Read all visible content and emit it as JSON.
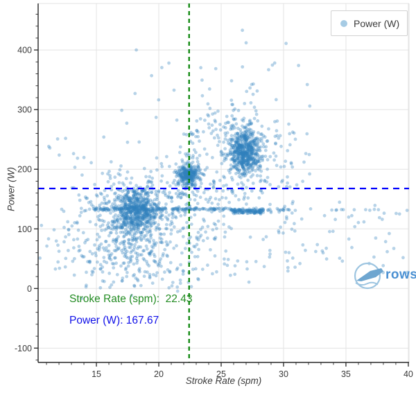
{
  "chart_data": {
    "type": "scatter",
    "title": "",
    "xlabel": "Stroke Rate (spm)",
    "ylabel": "Power (W)",
    "xlim": [
      10.33,
      40.06
    ],
    "ylim": [
      -124,
      478
    ],
    "x_major_ticks": [
      15,
      20,
      25,
      30,
      35,
      40
    ],
    "y_major_ticks": [
      -100,
      0,
      100,
      200,
      300,
      400
    ],
    "x_minor_step": 1,
    "y_minor_step": 20,
    "grid": true,
    "legend": {
      "label": "Power (W)",
      "position": "top-right",
      "marker_color": "#a6cbe4"
    },
    "series_style": {
      "color": "#3182bd",
      "alpha": 0.35,
      "radius": 2.4
    },
    "crosshair": {
      "vline_x": 22.43,
      "vline_color": "#008000",
      "hline_y": 167.67,
      "hline_color": "#0000ff"
    },
    "annotations": [
      {
        "text": "Stroke Rate (spm):  22.43",
        "color": "#228b22"
      },
      {
        "text": "Power (W): 167.67",
        "color": "#0f0fe8"
      }
    ],
    "point_generation": {
      "seed": 42,
      "clusters": [
        {
          "cx": 18.2,
          "cy": 131,
          "sx": 0.85,
          "sy": 17,
          "n": 480
        },
        {
          "cx": 18.0,
          "cy": 120,
          "sx": 1.9,
          "sy": 42,
          "n": 420
        },
        {
          "cx": 17.6,
          "cy": 60,
          "sx": 2.4,
          "sy": 32,
          "n": 130
        },
        {
          "cx": 22.35,
          "cy": 190,
          "sx": 0.42,
          "sy": 9,
          "n": 260
        },
        {
          "cx": 22.4,
          "cy": 178,
          "sx": 0.8,
          "sy": 25,
          "n": 60
        },
        {
          "cx": 26.85,
          "cy": 230,
          "sx": 0.6,
          "sy": 18,
          "n": 520
        },
        {
          "cx": 26.9,
          "cy": 228,
          "sx": 1.2,
          "sy": 38,
          "n": 170
        }
      ],
      "bands": [
        {
          "x0": 14.4,
          "x1": 23.3,
          "y": 133,
          "sy": 1.2,
          "n": 130
        },
        {
          "x0": 23.3,
          "x1": 25.8,
          "y": 133,
          "sy": 1.2,
          "n": 30
        },
        {
          "x0": 25.8,
          "x1": 28.4,
          "y": 131,
          "sy": 1.5,
          "n": 90
        },
        {
          "x0": 26.0,
          "x1": 28.2,
          "y": 127,
          "sy": 1.0,
          "n": 40
        },
        {
          "x0": 28.4,
          "x1": 30.6,
          "y": 132,
          "sy": 1.0,
          "n": 14
        },
        {
          "x0": 33.5,
          "x1": 38.6,
          "y": 132,
          "sy": 0.8,
          "n": 8
        }
      ],
      "regions": [
        {
          "x0": 10.5,
          "x1": 14.5,
          "y0": 25,
          "y1": 140,
          "n": 35
        },
        {
          "x0": 14.0,
          "x1": 24.0,
          "y0": 0,
          "y1": 90,
          "n": 90
        },
        {
          "x0": 24.0,
          "x1": 29.0,
          "y0": 10,
          "y1": 90,
          "n": 25
        },
        {
          "x0": 28.5,
          "x1": 40.0,
          "y0": 25,
          "y1": 150,
          "n": 70
        },
        {
          "x0": 21.0,
          "x1": 26.0,
          "y0": 90,
          "y1": 185,
          "n": 70
        },
        {
          "x0": 11.0,
          "x1": 31.0,
          "y0": 140,
          "y1": 300,
          "n": 55
        },
        {
          "x0": 19.0,
          "x1": 31.0,
          "y0": 280,
          "y1": 380,
          "n": 25
        },
        {
          "x0": 29.3,
          "x1": 32.3,
          "y0": 170,
          "y1": 285,
          "n": 30
        },
        {
          "x0": 21.8,
          "x1": 23.3,
          "y0": 200,
          "y1": 265,
          "n": 25
        },
        {
          "x0": 23.5,
          "x1": 26.0,
          "y0": 230,
          "y1": 310,
          "n": 25
        }
      ],
      "outliers": [
        [
          18.2,
          400
        ],
        [
          18.1,
          327
        ],
        [
          27.0,
          412
        ],
        [
          30.2,
          411
        ],
        [
          31.2,
          374
        ],
        [
          31.9,
          342
        ],
        [
          32.1,
          306
        ],
        [
          24.1,
          302
        ],
        [
          26.1,
          301
        ],
        [
          26.7,
          433
        ],
        [
          39.9,
          131
        ]
      ]
    }
  },
  "watermark": {
    "text": "rowsan",
    "text_color": "#4a90d2",
    "logo_color": "#9cc4e0",
    "boat_color": "#6ea6d0"
  }
}
